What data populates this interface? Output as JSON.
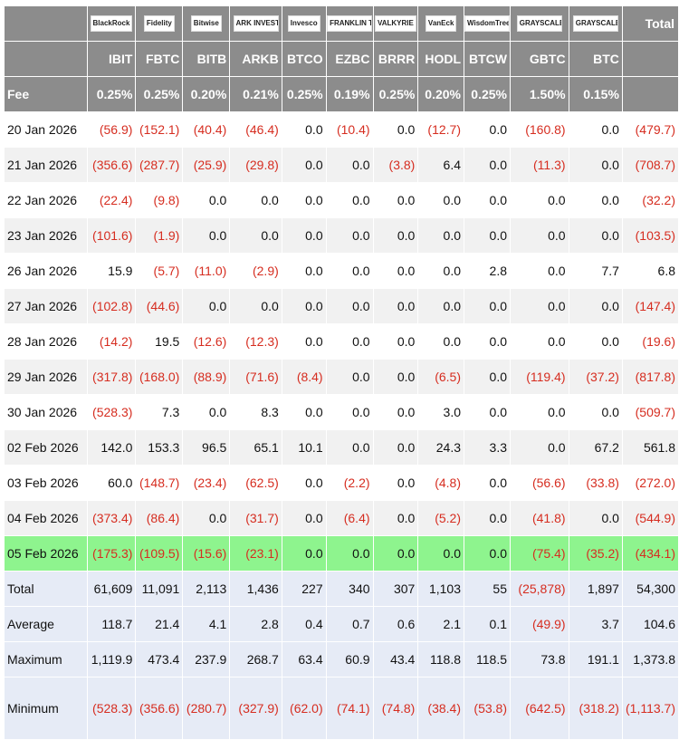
{
  "table": {
    "total_header": "Total",
    "logos": [
      "BlackRock",
      "Fidelity",
      "Bitwise",
      "ARK INVEST",
      "Invesco",
      "FRANKLIN TEMPLETON",
      "VALKYRIE",
      "VanEck",
      "WisdomTree",
      "GRAYSCALE",
      "GRAYSCALE"
    ],
    "tickers": [
      "IBIT",
      "FBTC",
      "BITB",
      "ARKB",
      "BTCO",
      "EZBC",
      "BRRR",
      "HODL",
      "BTCW",
      "GBTC",
      "BTC"
    ],
    "fee_label": "Fee",
    "fees": [
      "0.25%",
      "0.25%",
      "0.20%",
      "0.21%",
      "0.25%",
      "0.19%",
      "0.25%",
      "0.20%",
      "0.25%",
      "1.50%",
      "0.15%"
    ],
    "rows": [
      {
        "date": "20 Jan 2026",
        "values": [
          "(56.9)",
          "(152.1)",
          "(40.4)",
          "(46.4)",
          "0.0",
          "(10.4)",
          "0.0",
          "(12.7)",
          "0.0",
          "(160.8)",
          "0.0",
          "(479.7)"
        ]
      },
      {
        "date": "21 Jan 2026",
        "values": [
          "(356.6)",
          "(287.7)",
          "(25.9)",
          "(29.8)",
          "0.0",
          "0.0",
          "(3.8)",
          "6.4",
          "0.0",
          "(11.3)",
          "0.0",
          "(708.7)"
        ]
      },
      {
        "date": "22 Jan 2026",
        "values": [
          "(22.4)",
          "(9.8)",
          "0.0",
          "0.0",
          "0.0",
          "0.0",
          "0.0",
          "0.0",
          "0.0",
          "0.0",
          "0.0",
          "(32.2)"
        ]
      },
      {
        "date": "23 Jan 2026",
        "values": [
          "(101.6)",
          "(1.9)",
          "0.0",
          "0.0",
          "0.0",
          "0.0",
          "0.0",
          "0.0",
          "0.0",
          "0.0",
          "0.0",
          "(103.5)"
        ]
      },
      {
        "date": "26 Jan 2026",
        "values": [
          "15.9",
          "(5.7)",
          "(11.0)",
          "(2.9)",
          "0.0",
          "0.0",
          "0.0",
          "0.0",
          "2.8",
          "0.0",
          "7.7",
          "6.8"
        ]
      },
      {
        "date": "27 Jan 2026",
        "values": [
          "(102.8)",
          "(44.6)",
          "0.0",
          "0.0",
          "0.0",
          "0.0",
          "0.0",
          "0.0",
          "0.0",
          "0.0",
          "0.0",
          "(147.4)"
        ]
      },
      {
        "date": "28 Jan 2026",
        "values": [
          "(14.2)",
          "19.5",
          "(12.6)",
          "(12.3)",
          "0.0",
          "0.0",
          "0.0",
          "0.0",
          "0.0",
          "0.0",
          "0.0",
          "(19.6)"
        ]
      },
      {
        "date": "29 Jan 2026",
        "values": [
          "(317.8)",
          "(168.0)",
          "(88.9)",
          "(71.6)",
          "(8.4)",
          "0.0",
          "0.0",
          "(6.5)",
          "0.0",
          "(119.4)",
          "(37.2)",
          "(817.8)"
        ]
      },
      {
        "date": "30 Jan 2026",
        "values": [
          "(528.3)",
          "7.3",
          "0.0",
          "8.3",
          "0.0",
          "0.0",
          "0.0",
          "3.0",
          "0.0",
          "0.0",
          "0.0",
          "(509.7)"
        ]
      },
      {
        "date": "02 Feb 2026",
        "values": [
          "142.0",
          "153.3",
          "96.5",
          "65.1",
          "10.1",
          "0.0",
          "0.0",
          "24.3",
          "3.3",
          "0.0",
          "67.2",
          "561.8"
        ]
      },
      {
        "date": "03 Feb 2026",
        "values": [
          "60.0",
          "(148.7)",
          "(23.4)",
          "(62.5)",
          "0.0",
          "(2.2)",
          "0.0",
          "(4.8)",
          "0.0",
          "(56.6)",
          "(33.8)",
          "(272.0)"
        ]
      },
      {
        "date": "04 Feb 2026",
        "values": [
          "(373.4)",
          "(86.4)",
          "0.0",
          "(31.7)",
          "0.0",
          "(6.4)",
          "0.0",
          "(5.2)",
          "0.0",
          "(41.8)",
          "0.0",
          "(544.9)"
        ]
      },
      {
        "date": "05 Feb 2026",
        "values": [
          "(175.3)",
          "(109.5)",
          "(15.6)",
          "(23.1)",
          "0.0",
          "0.0",
          "0.0",
          "0.0",
          "0.0",
          "(75.4)",
          "(35.2)",
          "(434.1)"
        ]
      }
    ],
    "summary": [
      {
        "label": "Total",
        "values": [
          "61,609",
          "11,091",
          "2,113",
          "1,436",
          "227",
          "340",
          "307",
          "1,103",
          "55",
          "(25,878)",
          "1,897",
          "54,300"
        ]
      },
      {
        "label": "Average",
        "values": [
          "118.7",
          "21.4",
          "4.1",
          "2.8",
          "0.4",
          "0.7",
          "0.6",
          "2.1",
          "0.1",
          "(49.9)",
          "3.7",
          "104.6"
        ]
      },
      {
        "label": "Maximum",
        "values": [
          "1,119.9",
          "473.4",
          "237.9",
          "268.7",
          "63.4",
          "60.9",
          "43.4",
          "118.8",
          "118.5",
          "73.8",
          "191.1",
          "1,373.8"
        ]
      },
      {
        "label": "Minimum",
        "values": [
          "(528.3)",
          "(356.6)",
          "(280.7)",
          "(327.9)",
          "(62.0)",
          "(74.1)",
          "(74.8)",
          "(38.4)",
          "(53.8)",
          "(642.5)",
          "(318.2)",
          "(1,113.7)"
        ]
      }
    ],
    "colors": {
      "header_bg": "#8c8c8c",
      "negative": "#d62d20",
      "highlight_row": "#8ef48e",
      "summary_bg": "#e6ebf6",
      "alt_row": "#f1f1f1"
    }
  }
}
